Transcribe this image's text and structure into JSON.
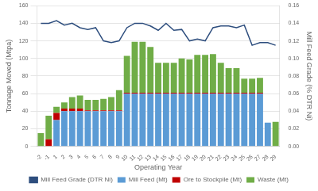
{
  "chart_data": {
    "type": "bar",
    "stacked": true,
    "grid": true,
    "legend": "bottom",
    "x_label": "Operating Year",
    "y_label": "Tonnage Moved (Mtpa)",
    "y2_label": "Mill Feed Grade (% DTR Ni)",
    "categories": [
      -2,
      -1,
      1,
      2,
      3,
      4,
      5,
      6,
      7,
      8,
      9,
      10,
      11,
      12,
      13,
      14,
      15,
      16,
      17,
      18,
      19,
      20,
      21,
      22,
      23,
      24,
      25,
      26,
      27,
      28,
      29
    ],
    "ylim": [
      0,
      160
    ],
    "yticks": [
      0,
      20,
      40,
      60,
      80,
      100,
      120,
      140,
      160
    ],
    "y2lim": [
      0,
      0.16
    ],
    "y2ticks": [
      {
        "value": 0,
        "label": "0.00"
      },
      0.02,
      0.04,
      0.06,
      0.08,
      {
        "value": 0.1,
        "label": "0.10"
      },
      0.12,
      0.14,
      0.16
    ],
    "series": [
      {
        "name": "Mill Feed (Mt)",
        "type": "bar",
        "color": "#5B9BD5",
        "values": [
          0,
          0,
          30,
          40,
          40,
          40,
          40,
          40,
          40,
          40,
          40,
          60,
          60,
          60,
          60,
          60,
          60,
          60,
          60,
          60,
          60,
          60,
          60,
          60,
          60,
          60,
          60,
          60,
          60,
          27,
          0
        ]
      },
      {
        "name": "Ore to Stockpile (Mt)",
        "type": "bar",
        "color": "#C00000",
        "values": [
          0,
          8,
          8,
          3,
          3,
          3,
          1,
          1,
          1,
          1,
          1,
          1,
          1,
          1,
          1,
          1,
          1,
          1,
          1,
          1,
          1,
          1,
          1,
          1,
          1,
          1,
          1,
          1,
          1,
          0,
          0
        ]
      },
      {
        "name": "Waste (Mt)",
        "type": "bar",
        "color": "#70AD47",
        "values": [
          15,
          27,
          7,
          7,
          13,
          15,
          12,
          12,
          13,
          15,
          23,
          42,
          58,
          58,
          52,
          34,
          34,
          34,
          39,
          38,
          43,
          43,
          44,
          34,
          28,
          28,
          16,
          16,
          17,
          0,
          28
        ]
      },
      {
        "name": "Mill Feed Grade (DTR Ni)",
        "type": "line",
        "axis": "y2",
        "color": "#2E4E7E",
        "values": [
          0.14,
          0.14,
          0.143,
          0.138,
          0.14,
          0.135,
          0.133,
          0.135,
          0.12,
          0.118,
          0.12,
          0.135,
          0.14,
          0.14,
          0.137,
          0.132,
          0.14,
          0.132,
          0.133,
          0.12,
          0.122,
          0.12,
          0.135,
          0.137,
          0.137,
          0.135,
          0.138,
          0.115,
          0.118,
          0.118,
          0.115
        ]
      }
    ]
  }
}
